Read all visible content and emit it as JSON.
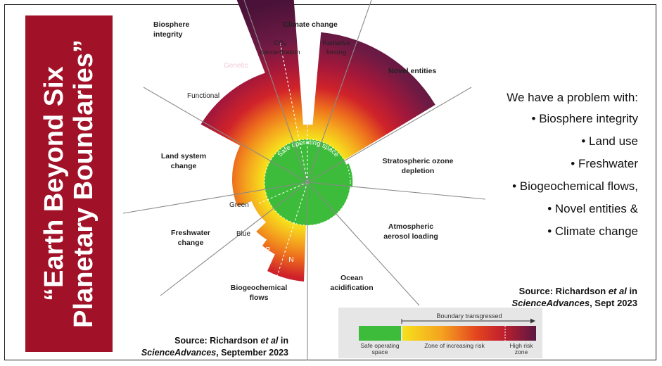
{
  "title": {
    "line1": "“Earth Beyond Six",
    "line2": "Planetary Boundaries”"
  },
  "diagram": {
    "centre_label": "Safe operating space",
    "sectors": [
      {
        "name": "Climate change",
        "sub": [
          "CO₂ concentration",
          "Radiative forcing"
        ]
      },
      {
        "name": "Novel entities"
      },
      {
        "name": "Stratospheric ozone depletion"
      },
      {
        "name": "Atmospheric aerosol loading"
      },
      {
        "name": "Ocean acidification"
      },
      {
        "name": "Biogeochemical flows",
        "sub": [
          "P",
          "N"
        ]
      },
      {
        "name": "Freshwater change",
        "sub": [
          "Green",
          "Blue"
        ]
      },
      {
        "name": "Land system change"
      },
      {
        "name": "Biosphere integrity",
        "sub": [
          "Functional",
          "Genetic"
        ]
      }
    ],
    "label_lines": {
      "climate": "Climate change",
      "co2_a": "CO₂",
      "co2_b": "concentration",
      "rad_a": "Radiative",
      "rad_b": "forcing",
      "novel": "Novel entities",
      "ozone_a": "Stratospheric ozone",
      "ozone_b": "depletion",
      "aerosol_a": "Atmospheric",
      "aerosol_b": "aerosol loading",
      "ocean_a": "Ocean",
      "ocean_b": "acidification",
      "bio_a": "Biogeochemical",
      "bio_b": "flows",
      "p": "P",
      "n": "N",
      "fresh_a": "Freshwater",
      "fresh_b": "change",
      "green": "Green",
      "blue": "Blue",
      "land_a": "Land system",
      "land_b": "change",
      "functional": "Functional",
      "biosphere_a": "Biosphere",
      "biosphere_b": "integrity",
      "genetic": "Genetic"
    }
  },
  "problems": {
    "heading": "We have a problem with:",
    "items": [
      "• Biosphere integrity",
      "• Land use",
      "• Freshwater",
      "• Biogeochemical flows,",
      "• Novel entities &",
      "• Climate change"
    ]
  },
  "source_right": {
    "prefix": "Source: Richardson ",
    "etal": "et al",
    "mid": " in",
    "journal": "ScienceAdvances",
    "suffix": ", Sept 2023"
  },
  "source_bottom": {
    "prefix": "Source: Richardson ",
    "etal": "et al",
    "mid": " in",
    "journal": "ScienceAdvances",
    "suffix": ", September 2023"
  },
  "legend": {
    "arrow_label": "Boundary transgressed",
    "safe_a": "Safe operating",
    "safe_b": "space",
    "zone": "Zone of increasing risk",
    "high_a": "High risk",
    "high_b": "zone"
  },
  "colors": {
    "panel": "#a11228",
    "safe": "#3dbb3a",
    "yellow": "#f6e11c",
    "orange": "#ef7d1a",
    "red": "#d0232a",
    "purple": "#5a1742"
  }
}
